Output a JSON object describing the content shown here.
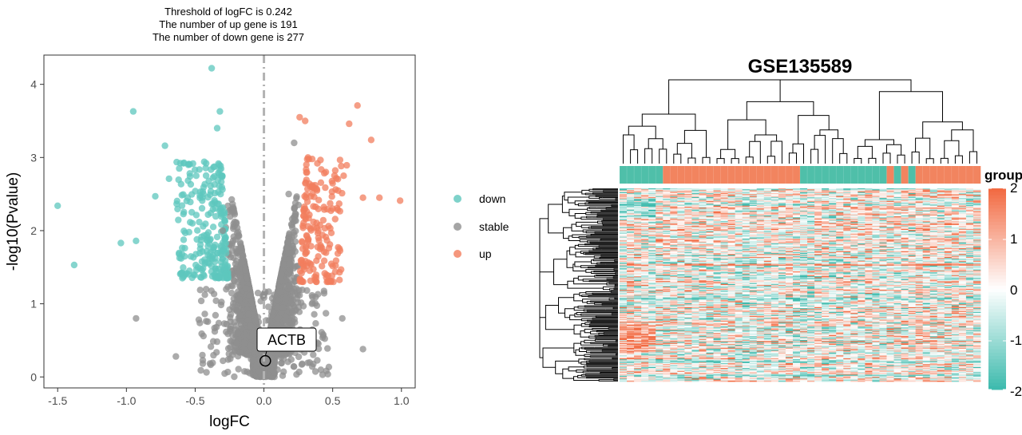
{
  "volcano": {
    "subtitle_lines": [
      "Threshold of logFC is 0.242",
      "The number of up gene is 191",
      "The number of down gene is 277"
    ],
    "threshold": 0.242,
    "up_count": 191,
    "down_count": 277,
    "xlabel": "logFC",
    "ylabel": "-log10(Pvalue)",
    "label_gene": "ACTB",
    "label_point": [
      0.01,
      0.22
    ],
    "colors": {
      "down": "#5ec7bd",
      "stable": "#8f8f8f",
      "up": "#f27d5d"
    },
    "legend": [
      "down",
      "stable",
      "up"
    ]
  },
  "heatmap": {
    "title": "GSE135589",
    "group_label": "group",
    "colorbar_ticks": [
      "2",
      "1",
      "0",
      "-1",
      "-2"
    ],
    "low_color": "#3fbbae",
    "mid_color": "#ffffff",
    "high_color": "#f26b43",
    "group_colors": [
      "#4fbfa9",
      "#f2845f"
    ],
    "group_blocks": [
      {
        "group": 0,
        "count": 6
      },
      {
        "group": 1,
        "count": 19
      },
      {
        "group": 0,
        "count": 12
      },
      {
        "group": 1,
        "count": 1
      },
      {
        "group": 0,
        "count": 1
      },
      {
        "group": 1,
        "count": 1
      },
      {
        "group": 0,
        "count": 1
      },
      {
        "group": 1,
        "count": 9
      }
    ]
  },
  "chart_data": [
    {
      "type": "scatter",
      "title": "",
      "subtitle": "Threshold of logFC is 0.242 / The number of up gene is 191 / The number of down gene is 277",
      "xlabel": "logFC",
      "ylabel": "-log10(Pvalue)",
      "xlim": [
        -1.6,
        1.1
      ],
      "ylim": [
        -0.15,
        4.4
      ],
      "xticks": [
        -1.5,
        -1.0,
        -0.5,
        0.0,
        0.5,
        1.0
      ],
      "yticks": [
        0,
        1,
        2,
        3,
        4
      ],
      "grid": false,
      "legend": "right",
      "series": [
        {
          "name": "down",
          "points": [
            [
              -1.5,
              2.34
            ],
            [
              -1.38,
              1.53
            ],
            [
              -1.04,
              1.83
            ],
            [
              -0.95,
              3.63
            ],
            [
              -0.93,
              1.86
            ],
            [
              -0.79,
              2.47
            ],
            [
              -0.72,
              3.16
            ],
            [
              -0.69,
              2.71
            ],
            [
              -0.55,
              2.9
            ],
            [
              -0.52,
              2.1
            ],
            [
              -0.48,
              1.5
            ],
            [
              -0.38,
              4.22
            ],
            [
              -0.36,
              2.63
            ],
            [
              -0.34,
              3.4
            ],
            [
              -0.32,
              3.63
            ],
            [
              -0.28,
              1.4
            ]
          ]
        },
        {
          "name": "stable",
          "points": [
            [
              -0.93,
              0.8
            ],
            [
              -0.64,
              0.28
            ],
            [
              -0.42,
              1.2
            ],
            [
              -0.3,
              2.0
            ],
            [
              -0.2,
              1.5
            ],
            [
              -0.1,
              0.7
            ],
            [
              0.0,
              0.3
            ],
            [
              0.01,
              0.22
            ],
            [
              0.1,
              0.8
            ],
            [
              0.18,
              2.5
            ],
            [
              0.22,
              3.2
            ],
            [
              0.35,
              1.0
            ],
            [
              0.57,
              0.8
            ],
            [
              0.72,
              0.38
            ]
          ]
        },
        {
          "name": "up",
          "points": [
            [
              0.26,
              3.55
            ],
            [
              0.3,
              3.5
            ],
            [
              0.32,
              3.0
            ],
            [
              0.35,
              2.6
            ],
            [
              0.45,
              2.8
            ],
            [
              0.5,
              2.3
            ],
            [
              0.58,
              2.75
            ],
            [
              0.62,
              3.46
            ],
            [
              0.68,
              3.71
            ],
            [
              0.72,
              2.45
            ],
            [
              0.78,
              3.24
            ],
            [
              0.84,
              2.45
            ],
            [
              0.99,
              2.41
            ]
          ]
        }
      ],
      "annotations": [
        {
          "text": "ACTB",
          "x": 0.01,
          "y": 0.22
        }
      ]
    },
    {
      "type": "heatmap",
      "title": "GSE135589",
      "legend_title": "group",
      "colorbar_ticks": [
        2,
        1,
        0,
        -1,
        -2
      ],
      "value_range": [
        -2,
        2
      ]
    }
  ]
}
